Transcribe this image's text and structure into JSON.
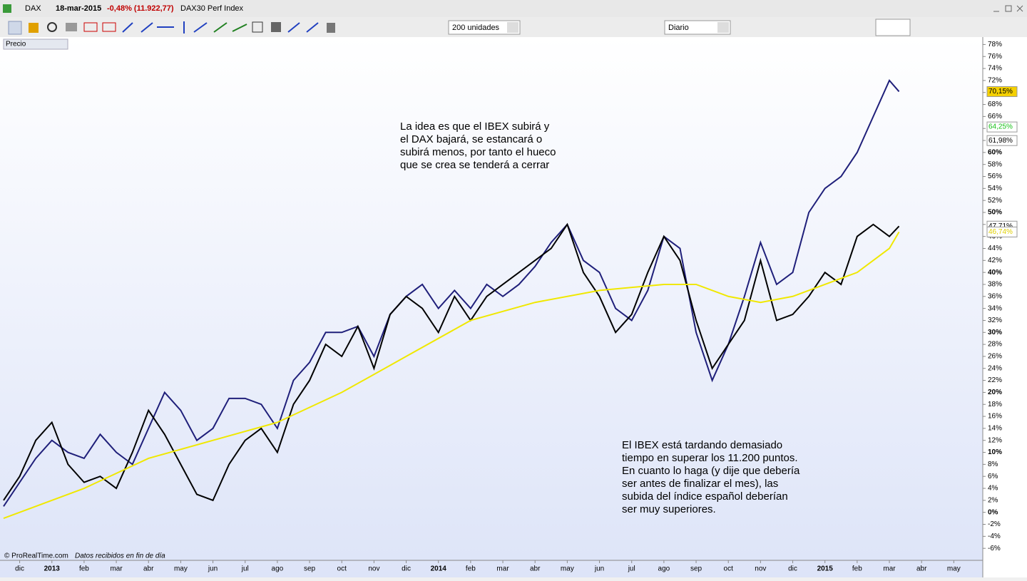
{
  "header": {
    "symbol": "DAX",
    "date": "18-mar-2015",
    "change": "-0,48% (11.922,77)",
    "name": "DAX30 Perf Index"
  },
  "toolbar": {
    "units": "200 unidades",
    "period": "Diario"
  },
  "panel": {
    "label": "Precio"
  },
  "footer": {
    "copyright": "© ProRealTime.com",
    "note": "Datos recibidos en fin de día"
  },
  "chart_data": {
    "type": "line",
    "xlim": [
      -0.5,
      29.9
    ],
    "ylim": [
      -8,
      79
    ],
    "xticks": [
      {
        "value": 0,
        "label": "dic"
      },
      {
        "value": 1,
        "label": "2013"
      },
      {
        "value": 2,
        "label": "feb"
      },
      {
        "value": 3,
        "label": "mar"
      },
      {
        "value": 4,
        "label": "abr"
      },
      {
        "value": 5,
        "label": "may"
      },
      {
        "value": 6,
        "label": "jun"
      },
      {
        "value": 7,
        "label": "jul"
      },
      {
        "value": 8,
        "label": "ago"
      },
      {
        "value": 9,
        "label": "sep"
      },
      {
        "value": 10,
        "label": "oct"
      },
      {
        "value": 11,
        "label": "nov"
      },
      {
        "value": 12,
        "label": "dic"
      },
      {
        "value": 13,
        "label": "2014"
      },
      {
        "value": 14,
        "label": "feb"
      },
      {
        "value": 15,
        "label": "mar"
      },
      {
        "value": 16,
        "label": "abr"
      },
      {
        "value": 17,
        "label": "may"
      },
      {
        "value": 18,
        "label": "jun"
      },
      {
        "value": 19,
        "label": "jul"
      },
      {
        "value": 20,
        "label": "ago"
      },
      {
        "value": 21,
        "label": "sep"
      },
      {
        "value": 22,
        "label": "oct"
      },
      {
        "value": 23,
        "label": "nov"
      },
      {
        "value": 24,
        "label": "dic"
      },
      {
        "value": 25,
        "label": "2015"
      },
      {
        "value": 26,
        "label": "feb"
      },
      {
        "value": 27,
        "label": "mar"
      },
      {
        "value": 28,
        "label": "abr"
      },
      {
        "value": 29,
        "label": "may"
      }
    ],
    "yticks": [
      {
        "value": -6,
        "label": "-6%"
      },
      {
        "value": -4,
        "label": "-4%"
      },
      {
        "value": -2,
        "label": "-2%"
      },
      {
        "value": 0,
        "label": "0%"
      },
      {
        "value": 2,
        "label": "2%"
      },
      {
        "value": 4,
        "label": "4%"
      },
      {
        "value": 6,
        "label": "6%"
      },
      {
        "value": 8,
        "label": "8%"
      },
      {
        "value": 10,
        "label": "10%"
      },
      {
        "value": 12,
        "label": "12%"
      },
      {
        "value": 14,
        "label": "14%"
      },
      {
        "value": 16,
        "label": "16%"
      },
      {
        "value": 18,
        "label": "18%"
      },
      {
        "value": 20,
        "label": "20%"
      },
      {
        "value": 22,
        "label": "22%"
      },
      {
        "value": 24,
        "label": "24%"
      },
      {
        "value": 26,
        "label": "26%"
      },
      {
        "value": 28,
        "label": "28%"
      },
      {
        "value": 30,
        "label": "30%"
      },
      {
        "value": 32,
        "label": "32%"
      },
      {
        "value": 34,
        "label": "34%"
      },
      {
        "value": 36,
        "label": "36%"
      },
      {
        "value": 38,
        "label": "38%"
      },
      {
        "value": 40,
        "label": "40%"
      },
      {
        "value": 42,
        "label": "42%"
      },
      {
        "value": 44,
        "label": "44%"
      },
      {
        "value": 46,
        "label": "46%"
      },
      {
        "value": 48,
        "label": "48%"
      },
      {
        "value": 50,
        "label": "50%"
      },
      {
        "value": 52,
        "label": "52%"
      },
      {
        "value": 54,
        "label": "54%"
      },
      {
        "value": 56,
        "label": "56%"
      },
      {
        "value": 58,
        "label": "58%"
      },
      {
        "value": 60,
        "label": "60%"
      },
      {
        "value": 62,
        "label": "62%"
      },
      {
        "value": 64,
        "label": "64%"
      },
      {
        "value": 66,
        "label": "66%"
      },
      {
        "value": 68,
        "label": "68%"
      },
      {
        "value": 70,
        "label": "70%"
      },
      {
        "value": 72,
        "label": "72%"
      },
      {
        "value": 74,
        "label": "74%"
      },
      {
        "value": 76,
        "label": "76%"
      },
      {
        "value": 78,
        "label": "78%"
      }
    ],
    "series": [
      {
        "color": "#1f1f7a",
        "x": [
          -0.5,
          0,
          0.5,
          1,
          1.5,
          2,
          2.5,
          3,
          3.5,
          4,
          4.5,
          5,
          5.5,
          6,
          6.5,
          7,
          7.5,
          8,
          8.5,
          9,
          9.5,
          10,
          10.5,
          11,
          11.5,
          12,
          12.5,
          13,
          13.5,
          14,
          14.5,
          15,
          15.5,
          16,
          16.5,
          17,
          17.5,
          18,
          18.5,
          19,
          19.5,
          20,
          20.5,
          21,
          21.5,
          22,
          22.5,
          23,
          23.5,
          24,
          24.5,
          25,
          25.5,
          26,
          26.5,
          27,
          27.3
        ],
        "values": [
          1,
          5,
          9,
          12,
          10,
          9,
          13,
          10,
          8,
          14,
          20,
          17,
          12,
          14,
          19,
          19,
          18,
          14,
          22,
          25,
          30,
          30,
          31,
          26,
          33,
          36,
          38,
          34,
          37,
          34,
          38,
          36,
          38,
          41,
          45,
          48,
          42,
          40,
          34,
          32,
          37,
          46,
          44,
          30,
          22,
          28,
          36,
          45,
          38,
          40,
          50,
          54,
          56,
          60,
          66,
          72,
          70.15
        ]
      },
      {
        "color": "#000000",
        "x": [
          -0.5,
          0,
          0.5,
          1,
          1.5,
          2,
          2.5,
          3,
          3.5,
          4,
          4.5,
          5,
          5.5,
          6,
          6.5,
          7,
          7.5,
          8,
          8.5,
          9,
          9.5,
          10,
          10.5,
          11,
          11.5,
          12,
          12.5,
          13,
          13.5,
          14,
          14.5,
          15,
          15.5,
          16,
          16.5,
          17,
          17.5,
          18,
          18.5,
          19,
          19.5,
          20,
          20.5,
          21,
          21.5,
          22,
          22.5,
          23,
          23.5,
          24,
          24.5,
          25,
          25.5,
          26,
          26.5,
          27,
          27.3
        ],
        "values": [
          2,
          6,
          12,
          15,
          8,
          5,
          6,
          4,
          10,
          17,
          13,
          8,
          3,
          2,
          8,
          12,
          14,
          10,
          18,
          22,
          28,
          26,
          31,
          24,
          33,
          36,
          34,
          30,
          36,
          32,
          36,
          38,
          40,
          42,
          44,
          48,
          40,
          36,
          30,
          33,
          40,
          46,
          42,
          32,
          24,
          28,
          32,
          42,
          32,
          33,
          36,
          40,
          38,
          46,
          48,
          46,
          47.71
        ]
      },
      {
        "color": "#f0e800",
        "x": [
          -0.5,
          2,
          4,
          6,
          8,
          10,
          12,
          14,
          16,
          18,
          20,
          21,
          22,
          23,
          24,
          25,
          26,
          27,
          27.3
        ],
        "values": [
          -1,
          4,
          9,
          12,
          15,
          20,
          26,
          32,
          35,
          37,
          38,
          38,
          36,
          35,
          36,
          38,
          40,
          44,
          46.74
        ]
      }
    ],
    "price_tags": [
      {
        "value": 70.15,
        "label": "70,15%",
        "background": "#f5d000",
        "color": "#000000"
      },
      {
        "value": 64.25,
        "label": "64,25%",
        "background": "#ffffff",
        "color": "#18c018"
      },
      {
        "value": 61.98,
        "label": "61,98%",
        "background": "#ffffff",
        "color": "#000000"
      },
      {
        "value": 47.71,
        "label": "47,71%",
        "background": "#ffffff",
        "color": "#000000"
      },
      {
        "value": 46.74,
        "label": "46,74%",
        "background": "#ffffff",
        "color": "#e0d000"
      }
    ],
    "annotations": [
      {
        "lines": [
          "La idea es que el IBEX subirá y",
          "el DAX bajará, se estancará o",
          "subirá menos, por tanto el hueco",
          "que se crea se tenderá a cerrar"
        ]
      },
      {
        "lines": [
          "El IBEX está tardando demasiado",
          "tiempo en superar los 11.200 puntos.",
          "En cuanto lo haga (y dije que debería",
          "ser antes de finalizar el mes), las",
          "subida del índice español deberían",
          "ser muy superiores."
        ]
      }
    ]
  }
}
